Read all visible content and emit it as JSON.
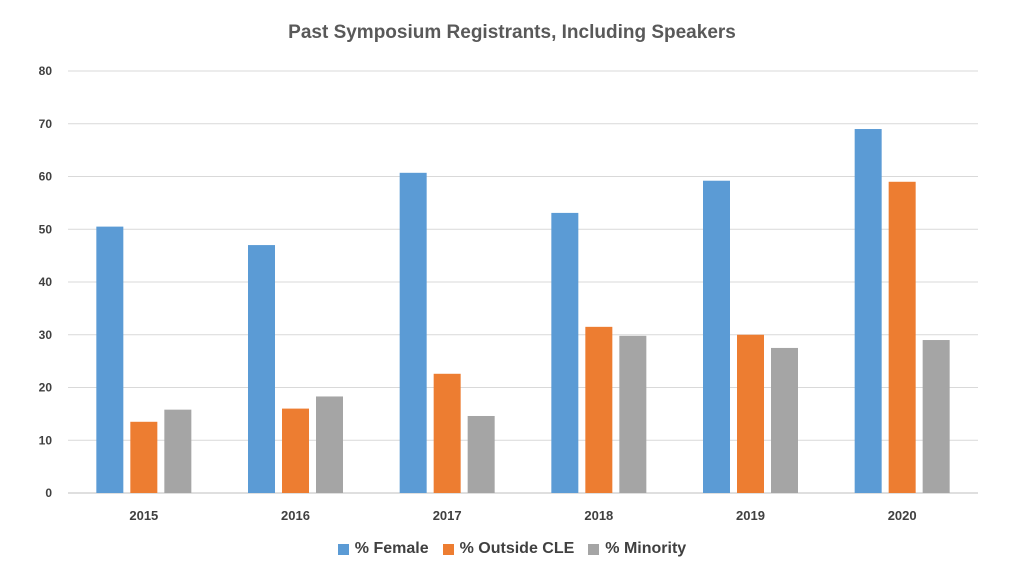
{
  "chart_data": {
    "type": "bar",
    "title": "Past Symposium Registrants, Including Speakers",
    "xlabel": "",
    "ylabel": "",
    "categories": [
      "2015",
      "2016",
      "2017",
      "2018",
      "2019",
      "2020"
    ],
    "series": [
      {
        "name": "% Female",
        "color": "#5B9BD5",
        "values": [
          50.5,
          47.0,
          60.7,
          53.1,
          59.2,
          69.0
        ]
      },
      {
        "name": "% Outside CLE",
        "color": "#ED7D31",
        "values": [
          13.5,
          16.0,
          22.6,
          31.5,
          30.0,
          59.0
        ]
      },
      {
        "name": "% Minority",
        "color": "#A5A5A5",
        "values": [
          15.8,
          18.3,
          14.6,
          29.8,
          27.5,
          29.0
        ]
      }
    ],
    "ylim": [
      0,
      80
    ],
    "yticks": [
      "0",
      "10",
      "20",
      "30",
      "40",
      "50",
      "60",
      "70",
      "80"
    ],
    "grid": true,
    "legend_position": "bottom"
  }
}
